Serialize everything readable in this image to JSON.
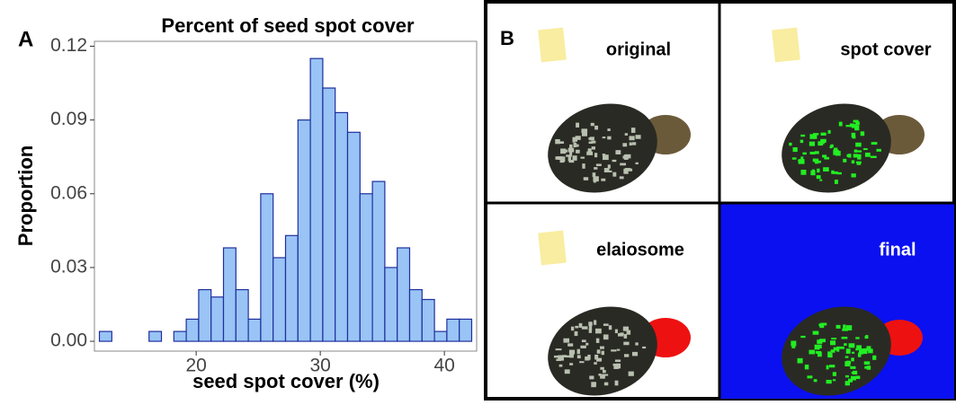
{
  "chart_data": {
    "type": "histogram",
    "title": "Percent of seed spot cover",
    "panel_label": "A",
    "x_label": "seed spot cover (%)",
    "y_label": "Proportion",
    "bins": [
      12.2,
      13.2,
      14.2,
      15.2,
      16.2,
      17.2,
      18.2,
      19.2,
      20.2,
      21.2,
      22.2,
      23.2,
      24.2,
      25.2,
      26.2,
      27.2,
      28.2,
      29.2,
      30.2,
      31.2,
      32.2,
      33.2,
      34.2,
      35.2,
      36.2,
      37.2,
      38.2,
      39.2,
      40.2,
      41.2,
      42.2
    ],
    "values": [
      0.004,
      0,
      0,
      0,
      0.004,
      0,
      0.004,
      0.009,
      0.021,
      0.018,
      0.038,
      0.021,
      0.009,
      0.06,
      0.034,
      0.043,
      0.09,
      0.115,
      0.103,
      0.093,
      0.085,
      0.06,
      0.065,
      0.03,
      0.038,
      0.021,
      0.017,
      0.004,
      0.009,
      0.009
    ],
    "color": "#99c4f5",
    "edge_color": "#1f2f9e",
    "xlim": [
      11.8,
      42.6
    ],
    "xticks": [
      20,
      30,
      40
    ],
    "ylim": [
      -0.004,
      0.122
    ],
    "yticks": [
      {
        "value": 0,
        "label": "0.00"
      },
      {
        "value": 0.03,
        "label": "0.03"
      },
      {
        "value": 0.06,
        "label": "0.06"
      },
      {
        "value": 0.09,
        "label": "0.09"
      },
      {
        "value": 0.12,
        "label": "0.12"
      }
    ]
  },
  "panel_b": {
    "label": "B",
    "images": [
      "original",
      "spot cover",
      "elaiosome",
      "final"
    ]
  }
}
